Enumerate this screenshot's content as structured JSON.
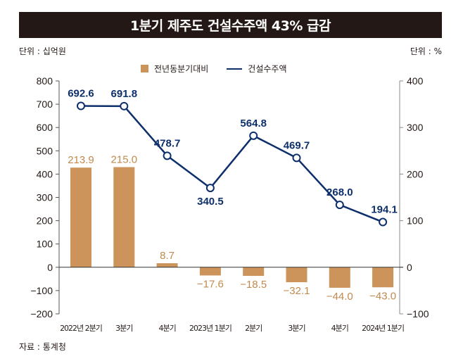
{
  "title": "1분기 제주도 건설수주액 43% 급감",
  "unit_left": "단위 : 십억원",
  "unit_right": "단위 : %",
  "source": "자료 : 통계청",
  "legend": {
    "bar_label": "전년동분기대비",
    "line_label": "건설수주액"
  },
  "colors": {
    "bar": "#cc945a",
    "bar_label": "#c08a50",
    "line": "#0d2f6b",
    "title_bg": "#231815"
  },
  "chart_data": {
    "type": "bar+line",
    "title": "1분기 제주도 건설수주액 43% 급감",
    "categories": [
      "2022년 2분기",
      "3분기",
      "4분기",
      "2023년 1분기",
      "2분기",
      "3분기",
      "4분기",
      "2024년 1분기"
    ],
    "series": [
      {
        "name": "건설수주액",
        "type": "line",
        "axis": "left",
        "unit": "십억원",
        "values": [
          692.6,
          691.8,
          478.7,
          340.5,
          564.8,
          469.7,
          268.0,
          194.1
        ],
        "labels": [
          "692.6",
          "691.8",
          "478.7",
          "340.5",
          "564.8",
          "469.7",
          "268.0",
          "194.1"
        ]
      },
      {
        "name": "전년동분기대비",
        "type": "bar",
        "axis": "right",
        "unit": "%",
        "values": [
          213.9,
          215.0,
          8.7,
          -17.6,
          -18.5,
          -32.1,
          -44.0,
          -43.0
        ],
        "labels": [
          "213.9",
          "215.0",
          "8.7",
          "−17.6",
          "−18.5",
          "−32.1",
          "−44.0",
          "−43.0"
        ]
      }
    ],
    "y_left": {
      "label": "단위 : 십억원",
      "range": [
        -200,
        800
      ],
      "ticks": [
        800,
        700,
        600,
        500,
        400,
        300,
        200,
        100,
        0,
        -100,
        -200
      ]
    },
    "y_right": {
      "label": "단위 : %",
      "range": [
        -100,
        400
      ],
      "ticks": [
        400,
        300,
        200,
        100,
        0,
        -100
      ]
    },
    "legend_position": "top-center",
    "grid": false
  }
}
